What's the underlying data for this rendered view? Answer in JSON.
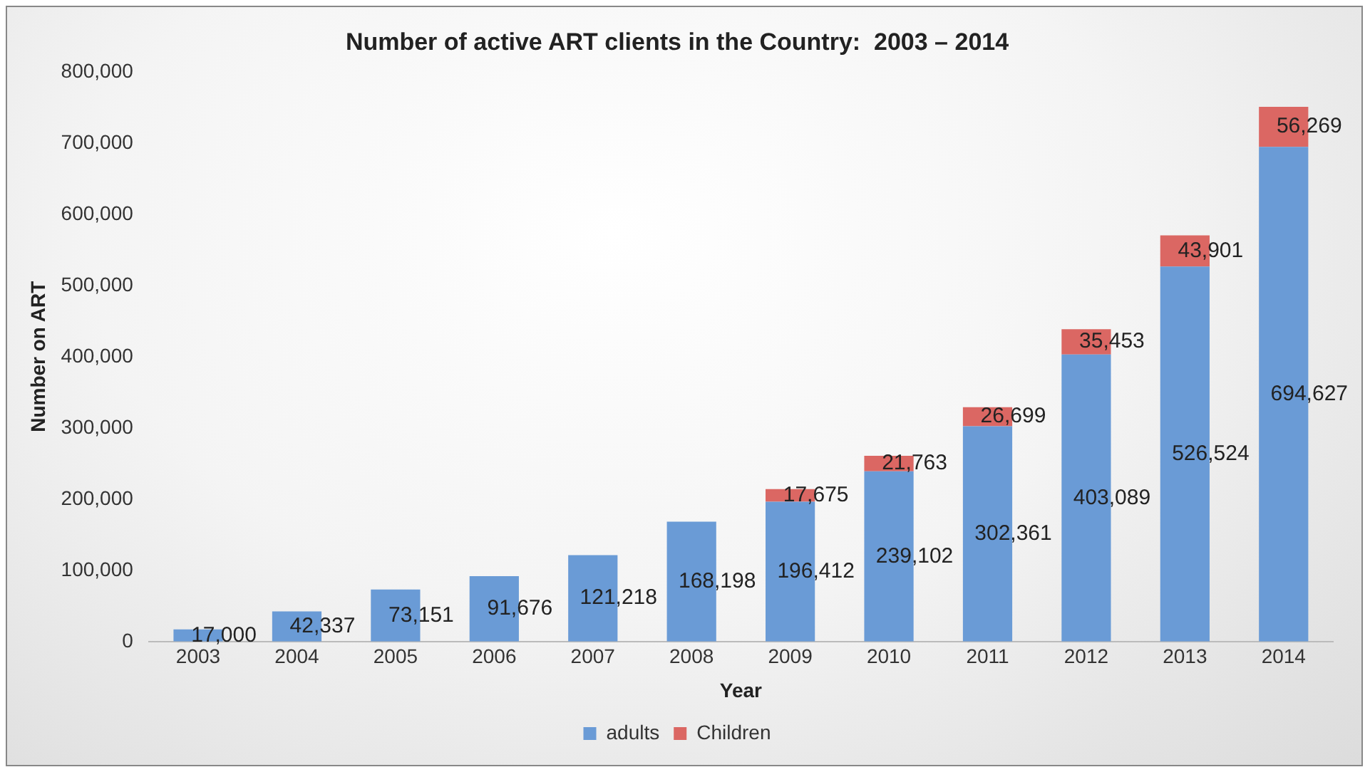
{
  "chart_data": {
    "type": "bar",
    "title": "Number of active ART clients in the Country:  2003 – 2014",
    "xlabel": "Year",
    "ylabel": "Number on ART",
    "categories": [
      "2003",
      "2004",
      "2005",
      "2006",
      "2007",
      "2008",
      "2009",
      "2010",
      "2011",
      "2012",
      "2013",
      "2014"
    ],
    "stacked": true,
    "series": [
      {
        "name": "adults",
        "color": "#6a9bd6",
        "values": [
          17000,
          42337,
          73151,
          91676,
          121218,
          168198,
          196412,
          239102,
          302361,
          403089,
          526524,
          694627
        ],
        "value_labels": [
          "17,000",
          "42,337",
          "73,151",
          "91,676",
          "121,218",
          "168,198",
          "196,412",
          "239,102",
          "302,361",
          "403,089",
          "526,524",
          "694,627"
        ]
      },
      {
        "name": "Children",
        "color": "#db6763",
        "values": [
          null,
          null,
          null,
          null,
          null,
          null,
          17675,
          21763,
          26699,
          35453,
          43901,
          56269
        ],
        "value_labels": [
          null,
          null,
          null,
          null,
          null,
          null,
          "17,675",
          "21,763",
          "26,699",
          "35,453",
          "43,901",
          "56,269"
        ]
      }
    ],
    "ylim": [
      0,
      800000
    ],
    "yticks": [
      0,
      {
        "value": 100000,
        "label": "100,000"
      },
      {
        "value": 200000,
        "label": "200,000"
      },
      {
        "value": 300000,
        "label": "300,000"
      },
      {
        "value": 400000,
        "label": "400,000"
      },
      {
        "value": 500000,
        "label": "500,000"
      },
      {
        "value": 600000,
        "label": "600,000"
      },
      {
        "value": 700000,
        "label": "700,000"
      },
      {
        "value": 800000,
        "label": "800,000"
      }
    ],
    "grid": false,
    "legend": "bottom"
  }
}
